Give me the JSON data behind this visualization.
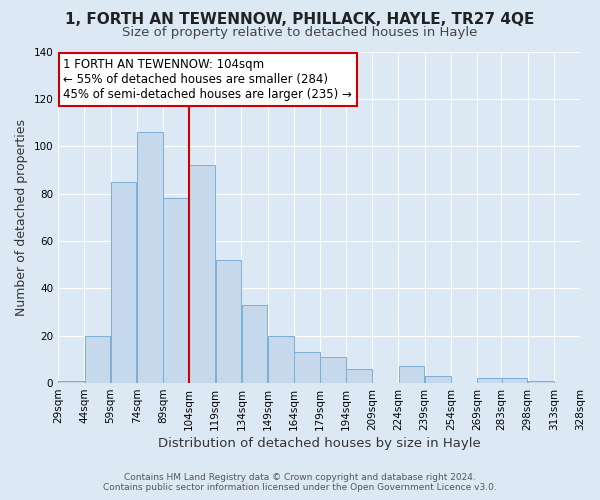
{
  "title": "1, FORTH AN TEWENNOW, PHILLACK, HAYLE, TR27 4QE",
  "subtitle": "Size of property relative to detached houses in Hayle",
  "xlabel": "Distribution of detached houses by size in Hayle",
  "ylabel": "Number of detached properties",
  "bin_labels": [
    "29sqm",
    "44sqm",
    "59sqm",
    "74sqm",
    "89sqm",
    "104sqm",
    "119sqm",
    "134sqm",
    "149sqm",
    "164sqm",
    "179sqm",
    "194sqm",
    "209sqm",
    "224sqm",
    "239sqm",
    "254sqm",
    "269sqm",
    "283sqm",
    "298sqm",
    "313sqm",
    "328sqm"
  ],
  "bin_edges": [
    29,
    44,
    59,
    74,
    89,
    104,
    119,
    134,
    149,
    164,
    179,
    194,
    209,
    224,
    239,
    254,
    269,
    283,
    298,
    313,
    328
  ],
  "bar_heights": [
    1,
    20,
    85,
    106,
    78,
    92,
    52,
    33,
    20,
    13,
    11,
    6,
    0,
    7,
    3,
    0,
    2,
    2,
    1,
    0
  ],
  "bar_color": "#c5d8ec",
  "bar_edgecolor": "#7bafd4",
  "vline_x": 104,
  "vline_color": "#cc0000",
  "annotation_text": "1 FORTH AN TEWENNOW: 104sqm\n← 55% of detached houses are smaller (284)\n45% of semi-detached houses are larger (235) →",
  "annotation_box_edgecolor": "#cc0000",
  "annotation_box_facecolor": "#ffffff",
  "ylim": [
    0,
    140
  ],
  "yticks": [
    0,
    20,
    40,
    60,
    80,
    100,
    120,
    140
  ],
  "footer_line1": "Contains HM Land Registry data © Crown copyright and database right 2024.",
  "footer_line2": "Contains public sector information licensed under the Open Government Licence v3.0.",
  "background_color": "#dce9f5",
  "plot_background_color": "#dce9f5",
  "grid_color": "#ffffff",
  "title_fontsize": 11,
  "subtitle_fontsize": 9.5,
  "axis_label_fontsize": 9,
  "tick_fontsize": 7.5,
  "annotation_fontsize": 8.5,
  "footer_fontsize": 6.5
}
